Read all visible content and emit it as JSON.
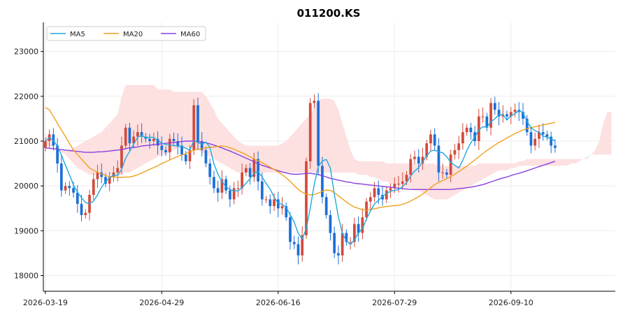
{
  "chart_data": {
    "type": "candlestick",
    "title": "011200.KS",
    "xlabel": "",
    "ylabel": "",
    "x_tick_labels": [
      "2026-03-19",
      "2026-04-29",
      "2026-06-16",
      "2026-07-29",
      "2026-09-10"
    ],
    "x_tick_index": [
      0,
      29,
      58,
      87,
      116
    ],
    "y_ticks": [
      18000,
      19000,
      20000,
      21000,
      22000,
      23000
    ],
    "ylim": [
      17650,
      23650
    ],
    "x_range": [
      -0.5,
      142
    ],
    "grid": true,
    "legend_position": "upper-left",
    "colors": {
      "up": "#d24a3c",
      "down": "#1d6fd6",
      "ma5": "#1fa8e0",
      "ma20": "#f0a01c",
      "ma60": "#8a3fe0",
      "cloud_bull": "#d9f0e2",
      "cloud_bear": "#fde0e0",
      "grid": "#eeeeee"
    },
    "legend": [
      {
        "key": "ma5",
        "label": "MA5"
      },
      {
        "key": "ma20",
        "label": "MA20"
      },
      {
        "key": "ma60",
        "label": "MA60"
      }
    ],
    "close_series": [
      21000,
      21150,
      20900,
      20500,
      19900,
      20000,
      19950,
      19850,
      19600,
      19350,
      19400,
      19800,
      20150,
      20300,
      20200,
      20050,
      20200,
      20300,
      20400,
      20900,
      21300,
      20950,
      21100,
      21200,
      21100,
      21050,
      21000,
      21050,
      20900,
      20800,
      20750,
      21050,
      21000,
      20900,
      20700,
      20550,
      20800,
      21800,
      21000,
      20800,
      20500,
      20200,
      19950,
      19850,
      20150,
      19900,
      19700,
      19950,
      19950,
      20300,
      20400,
      20200,
      20600,
      20100,
      19700,
      19700,
      19550,
      19700,
      19500,
      19550,
      19300,
      18750,
      18700,
      18450,
      18900,
      20550,
      21850,
      21900,
      20450,
      19750,
      19350,
      18950,
      18500,
      18450,
      18950,
      18750,
      18750,
      19150,
      18950,
      19300,
      19650,
      19750,
      19950,
      19800,
      19700,
      19900,
      19950,
      20050,
      20050,
      20100,
      20250,
      20600,
      20650,
      20500,
      20650,
      20950,
      21150,
      20900,
      20300,
      20300,
      20250,
      20700,
      20800,
      20950,
      21200,
      21300,
      21200,
      21000,
      21550,
      21550,
      21300,
      21850,
      21700,
      21550,
      21600,
      21550,
      21650,
      21700,
      21650,
      21500,
      21200,
      20900,
      21050,
      21200,
      21150,
      21100,
      20900,
      20850
    ],
    "ma5_series": [
      21000,
      21075,
      21017,
      20888,
      20690,
      20460,
      20250,
      20020,
      19860,
      19740,
      19630,
      19600,
      19660,
      19800,
      19970,
      20100,
      20180,
      20250,
      20230,
      20370,
      20620,
      20770,
      20930,
      21090,
      21130,
      21070,
      21090,
      21080,
      21020,
      20960,
      20920,
      20910,
      20900,
      20890,
      20880,
      20840,
      20800,
      21010,
      20970,
      20930,
      20980,
      20860,
      20490,
      20260,
      20100,
      19980,
      19920,
      19890,
      19890,
      19960,
      20060,
      20160,
      20290,
      20320,
      20200,
      20060,
      19930,
      19750,
      19610,
      19590,
      19520,
      19360,
      19190,
      18940,
      18820,
      19050,
      19500,
      20040,
      20430,
      20560,
      20590,
      20400,
      19810,
      19310,
      18940,
      18780,
      18690,
      18800,
      18950,
      19050,
      19260,
      19440,
      19600,
      19680,
      19770,
      19830,
      19880,
      19900,
      19920,
      19990,
      20070,
      20220,
      20330,
      20410,
      20540,
      20670,
      20780,
      20800,
      20760,
      20740,
      20650,
      20530,
      20460,
      20400,
      20570,
      20790,
      20960,
      21090,
      21250,
      21320,
      21310,
      21430,
      21500,
      21590,
      21590,
      21470,
      21570,
      21610,
      21690,
      21630,
      21440,
      21300,
      21230,
      21200,
      21110,
      21090,
      21050,
      21000
    ],
    "ma20_series": [
      21750,
      21700,
      21550,
      21400,
      21250,
      21100,
      20950,
      20800,
      20700,
      20600,
      20500,
      20400,
      20350,
      20300,
      20270,
      20230,
      20210,
      20200,
      20190,
      20190,
      20200,
      20200,
      20220,
      20250,
      20290,
      20330,
      20370,
      20410,
      20450,
      20500,
      20540,
      20580,
      20620,
      20660,
      20690,
      20720,
      20760,
      20800,
      20820,
      20830,
      20850,
      20860,
      20870,
      20880,
      20890,
      20880,
      20850,
      20820,
      20780,
      20740,
      20700,
      20650,
      20600,
      20560,
      20520,
      20470,
      20420,
      20370,
      20310,
      20250,
      20180,
      20100,
      20010,
      19920,
      19860,
      19820,
      19800,
      19810,
      19840,
      19880,
      19910,
      19900,
      19850,
      19780,
      19710,
      19640,
      19580,
      19530,
      19500,
      19470,
      19460,
      19470,
      19490,
      19510,
      19530,
      19540,
      19550,
      19560,
      19570,
      19590,
      19620,
      19660,
      19710,
      19760,
      19820,
      19890,
      19960,
      20030,
      20080,
      20120,
      20160,
      20210,
      20260,
      20320,
      20380,
      20440,
      20510,
      20580,
      20650,
      20720,
      20790,
      20850,
      20910,
      20970,
      21020,
      21070,
      21120,
      21170,
      21210,
      21250,
      21280,
      21300,
      21320,
      21340,
      21360,
      21380,
      21400,
      21420
    ],
    "ma60_series": [
      20850,
      20840,
      20830,
      20820,
      20810,
      20800,
      20790,
      20780,
      20770,
      20760,
      20750,
      20750,
      20750,
      20760,
      20760,
      20770,
      20780,
      20790,
      20800,
      20810,
      20830,
      20850,
      20860,
      20870,
      20890,
      20900,
      20910,
      20920,
      20930,
      20940,
      20950,
      20960,
      20970,
      20980,
      20990,
      21000,
      21000,
      21000,
      20990,
      20980,
      20960,
      20940,
      20910,
      20880,
      20850,
      20810,
      20780,
      20740,
      20700,
      20660,
      20620,
      20580,
      20540,
      20500,
      20460,
      20430,
      20400,
      20370,
      20340,
      20310,
      20290,
      20270,
      20260,
      20260,
      20270,
      20280,
      20280,
      20270,
      20250,
      20230,
      20200,
      20170,
      20150,
      20130,
      20110,
      20090,
      20080,
      20060,
      20050,
      20040,
      20030,
      20020,
      20010,
      20000,
      19990,
      19980,
      19970,
      19960,
      19950,
      19940,
      19930,
      19920,
      19920,
      19920,
      19920,
      19920,
      19920,
      19920,
      19920,
      19920,
      19920,
      19920,
      19930,
      19940,
      19950,
      19960,
      19970,
      19990,
      20010,
      20030,
      20060,
      20090,
      20120,
      20150,
      20180,
      20200,
      20230,
      20260,
      20280,
      20310,
      20340,
      20370,
      20400,
      20430,
      20460,
      20490,
      20520,
      20550
    ],
    "cloud_upper": [
      21200,
      21000,
      20900,
      20800,
      20800,
      20800,
      20800,
      20850,
      20900,
      20950,
      21000,
      21050,
      21100,
      21150,
      21200,
      21300,
      21400,
      21500,
      21600,
      22000,
      22250,
      22250,
      22250,
      22250,
      22250,
      22250,
      22250,
      22250,
      22150,
      22150,
      22150,
      22150,
      22100,
      22100,
      22100,
      22100,
      22100,
      22100,
      22100,
      22100,
      22000,
      21850,
      21700,
      21500,
      21400,
      21300,
      21200,
      21100,
      21000,
      20950,
      20900,
      20900,
      20900,
      20900,
      20900,
      20900,
      20900,
      20900,
      20900,
      20950,
      21000,
      21100,
      21200,
      21300,
      21400,
      21500,
      21600,
      21800,
      21900,
      21950,
      21950,
      21950,
      21900,
      21700,
      21400,
      21100,
      20800,
      20600,
      20550,
      20550,
      20550,
      20550,
      20550,
      20550,
      20550,
      20500,
      20500,
      20500,
      20500,
      20500,
      20500,
      20500,
      20500,
      20500,
      20500,
      20500,
      20500,
      20500,
      20450,
      20450,
      20450,
      20450,
      20450,
      20450,
      20450,
      20450,
      20450,
      20450,
      20500,
      20500,
      20500,
      20500,
      20500,
      20500,
      20500,
      20500,
      20500,
      20500,
      20550,
      20550,
      20600,
      20600,
      20600,
      20600,
      20600,
      20600,
      20600,
      20600,
      20600,
      20600,
      20600,
      20600,
      20600,
      20600,
      20600,
      20600,
      20700,
      20800,
      21000,
      21400,
      21650,
      21650
    ],
    "cloud_lower": [
      20900,
      20900,
      20850,
      20800,
      20750,
      20700,
      20600,
      20500,
      20400,
      20350,
      20300,
      20250,
      20250,
      20250,
      20250,
      20250,
      20250,
      20250,
      20250,
      20250,
      20300,
      20300,
      20350,
      20400,
      20450,
      20500,
      20550,
      20600,
      20650,
      20700,
      20700,
      20750,
      20800,
      20850,
      20850,
      20850,
      20850,
      20850,
      20800,
      20750,
      20700,
      20650,
      20600,
      20550,
      20500,
      20450,
      20400,
      20350,
      20300,
      20300,
      20300,
      20300,
      20300,
      20300,
      20300,
      20300,
      20300,
      20300,
      20300,
      20300,
      20300,
      20300,
      20300,
      20300,
      20300,
      20300,
      20300,
      20300,
      20300,
      20300,
      20300,
      20300,
      20300,
      20300,
      20300,
      20300,
      20300,
      20300,
      20250,
      20250,
      20250,
      20200,
      20200,
      20150,
      20100,
      20100,
      20050,
      20050,
      20000,
      20000,
      19950,
      19950,
      19900,
      19900,
      19850,
      19800,
      19750,
      19700,
      19700,
      19700,
      19700,
      19750,
      19800,
      19850,
      19900,
      19950,
      20000,
      20050,
      20100,
      20150,
      20200,
      20250,
      20300,
      20350,
      20350,
      20350,
      20400,
      20400,
      20450,
      20450,
      20450,
      20450,
      20450,
      20450,
      20450,
      20450,
      20450,
      20450,
      20450,
      20450,
      20450,
      20500,
      20500,
      20550,
      20600,
      20650,
      20700,
      20700,
      20700,
      20700,
      20700,
      20700
    ]
  }
}
